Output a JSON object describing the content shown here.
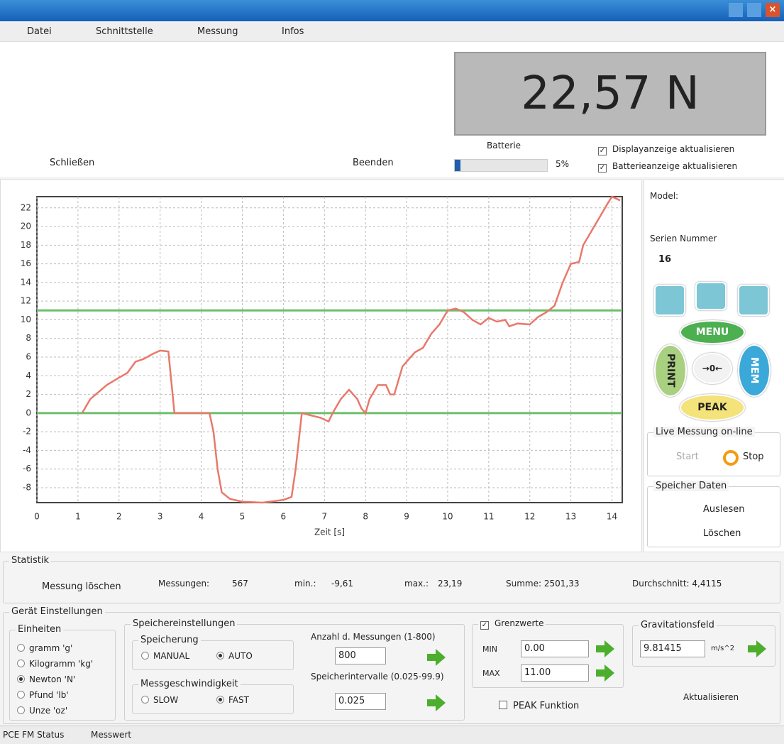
{
  "menu": [
    "Datei",
    "Schnittstelle",
    "Messung",
    "Infos"
  ],
  "display": "22,57 N",
  "toolbar": {
    "close": "Schließen",
    "exit": "Beenden",
    "battery_label": "Batterie",
    "battery_value": "5%",
    "display_update": "Displayanzeige aktualisieren",
    "battery_update": "Batterieanzeige aktualisieren"
  },
  "chart": {
    "type": "line",
    "xlabel": "Zeit [s]",
    "color": "#e8796b",
    "grid": true,
    "x": [
      1.1,
      1.3,
      1.7,
      2,
      2.2,
      2.4,
      2.6,
      2.8,
      3,
      3.2,
      3.35,
      4.2,
      4.3,
      4.4,
      4.5,
      4.7,
      5,
      5.5,
      6,
      6.2,
      6.3,
      6.45,
      6.9,
      7.1,
      7.2,
      7.4,
      7.6,
      7.8,
      7.9,
      8,
      8.1,
      8.3,
      8.5,
      8.6,
      8.7,
      8.9,
      9.2,
      9.4,
      9.6,
      9.8,
      10,
      10.2,
      10.4,
      10.6,
      10.8,
      11,
      11.2,
      11.4,
      11.5,
      11.7,
      12,
      12.2,
      12.4,
      12.6,
      12.8,
      13,
      13.2,
      13.3,
      13.5,
      13.7,
      13.9,
      14,
      14.2
    ],
    "values": [
      0,
      1.5,
      3,
      3.8,
      4.3,
      5.5,
      5.8,
      6.3,
      6.7,
      6.6,
      0,
      0,
      -2,
      -6,
      -8.5,
      -9.2,
      -9.5,
      -9.6,
      -9.3,
      -9,
      -6,
      0,
      -0.5,
      -0.9,
      0,
      1.5,
      2.5,
      1.5,
      0.5,
      0,
      1.5,
      3,
      3,
      2,
      2,
      5,
      6.5,
      7,
      8.5,
      9.5,
      11,
      11.2,
      10.8,
      10,
      9.5,
      10.2,
      9.8,
      10,
      9.3,
      9.6,
      9.5,
      10.3,
      10.8,
      11.5,
      14,
      16,
      16.2,
      18,
      19.5,
      21,
      22.5,
      23.19,
      22.8
    ],
    "limit_lines": [
      11,
      0
    ],
    "limit_color": "#6cbf6c",
    "xlim": [
      0,
      14.25
    ],
    "ylim": [
      -9.6,
      23.2
    ],
    "xticks": [
      0,
      1,
      2,
      3,
      4,
      5,
      6,
      7,
      8,
      9,
      10,
      11,
      12,
      13,
      14
    ],
    "yticks": [
      -8,
      -6,
      -4,
      -2,
      0,
      2,
      4,
      6,
      8,
      10,
      12,
      14,
      16,
      18,
      20,
      22
    ]
  },
  "device": {
    "model": "Model:",
    "serial_label": "Serien Nummer",
    "serial": "16",
    "keys": {
      "menu": "MENU",
      "print": "PRINT",
      "mem": "MEM",
      "peak": "PEAK",
      "zero": "→0←"
    }
  },
  "live": {
    "title": "Live Messung on-line",
    "start": "Start",
    "stop": "Stop"
  },
  "memory": {
    "title": "Speicher Daten",
    "read": "Auslesen",
    "delete": "Löschen"
  },
  "statistics": {
    "title": "Statistik",
    "clear": "Messung löschen",
    "count_label": "Messungen:",
    "count": "567",
    "min_label": "min.:",
    "min": "-9,61",
    "max_label": "max.:",
    "max": "23,19",
    "sum": "Summe: 2501,33",
    "avg": "Durchschnitt: 4,4115"
  },
  "settings": {
    "title": "Gerät Einstellungen",
    "units": {
      "title": "Einheiten",
      "options": [
        "gramm 'g'",
        "Kilogramm 'kg'",
        "Newton 'N'",
        "Pfund 'lb'",
        "Unze 'oz'"
      ]
    },
    "storage": {
      "title": "Speichereinstellungen",
      "mode_title": "Speicherung",
      "manual": "MANUAL",
      "auto": "AUTO",
      "speed_title": "Messgeschwindigkeit",
      "slow": "SLOW",
      "fast": "FAST",
      "count_label": "Anzahl d. Messungen (1-800)",
      "count": "800",
      "interval_label": "Speicherintervalle (0.025-99.9)",
      "interval": "0.025"
    },
    "limits": {
      "title": "Grenzwerte",
      "min_label": "MIN",
      "min": "0.00",
      "max_label": "MAX",
      "max": "11.00"
    },
    "peak_function": "PEAK Funktion",
    "gravity": {
      "title": "Gravitationsfeld",
      "value": "9.81415",
      "unit": "m/s^2"
    },
    "refresh": "Aktualisieren"
  },
  "status": [
    "PCE FM Status",
    "Messwert"
  ]
}
